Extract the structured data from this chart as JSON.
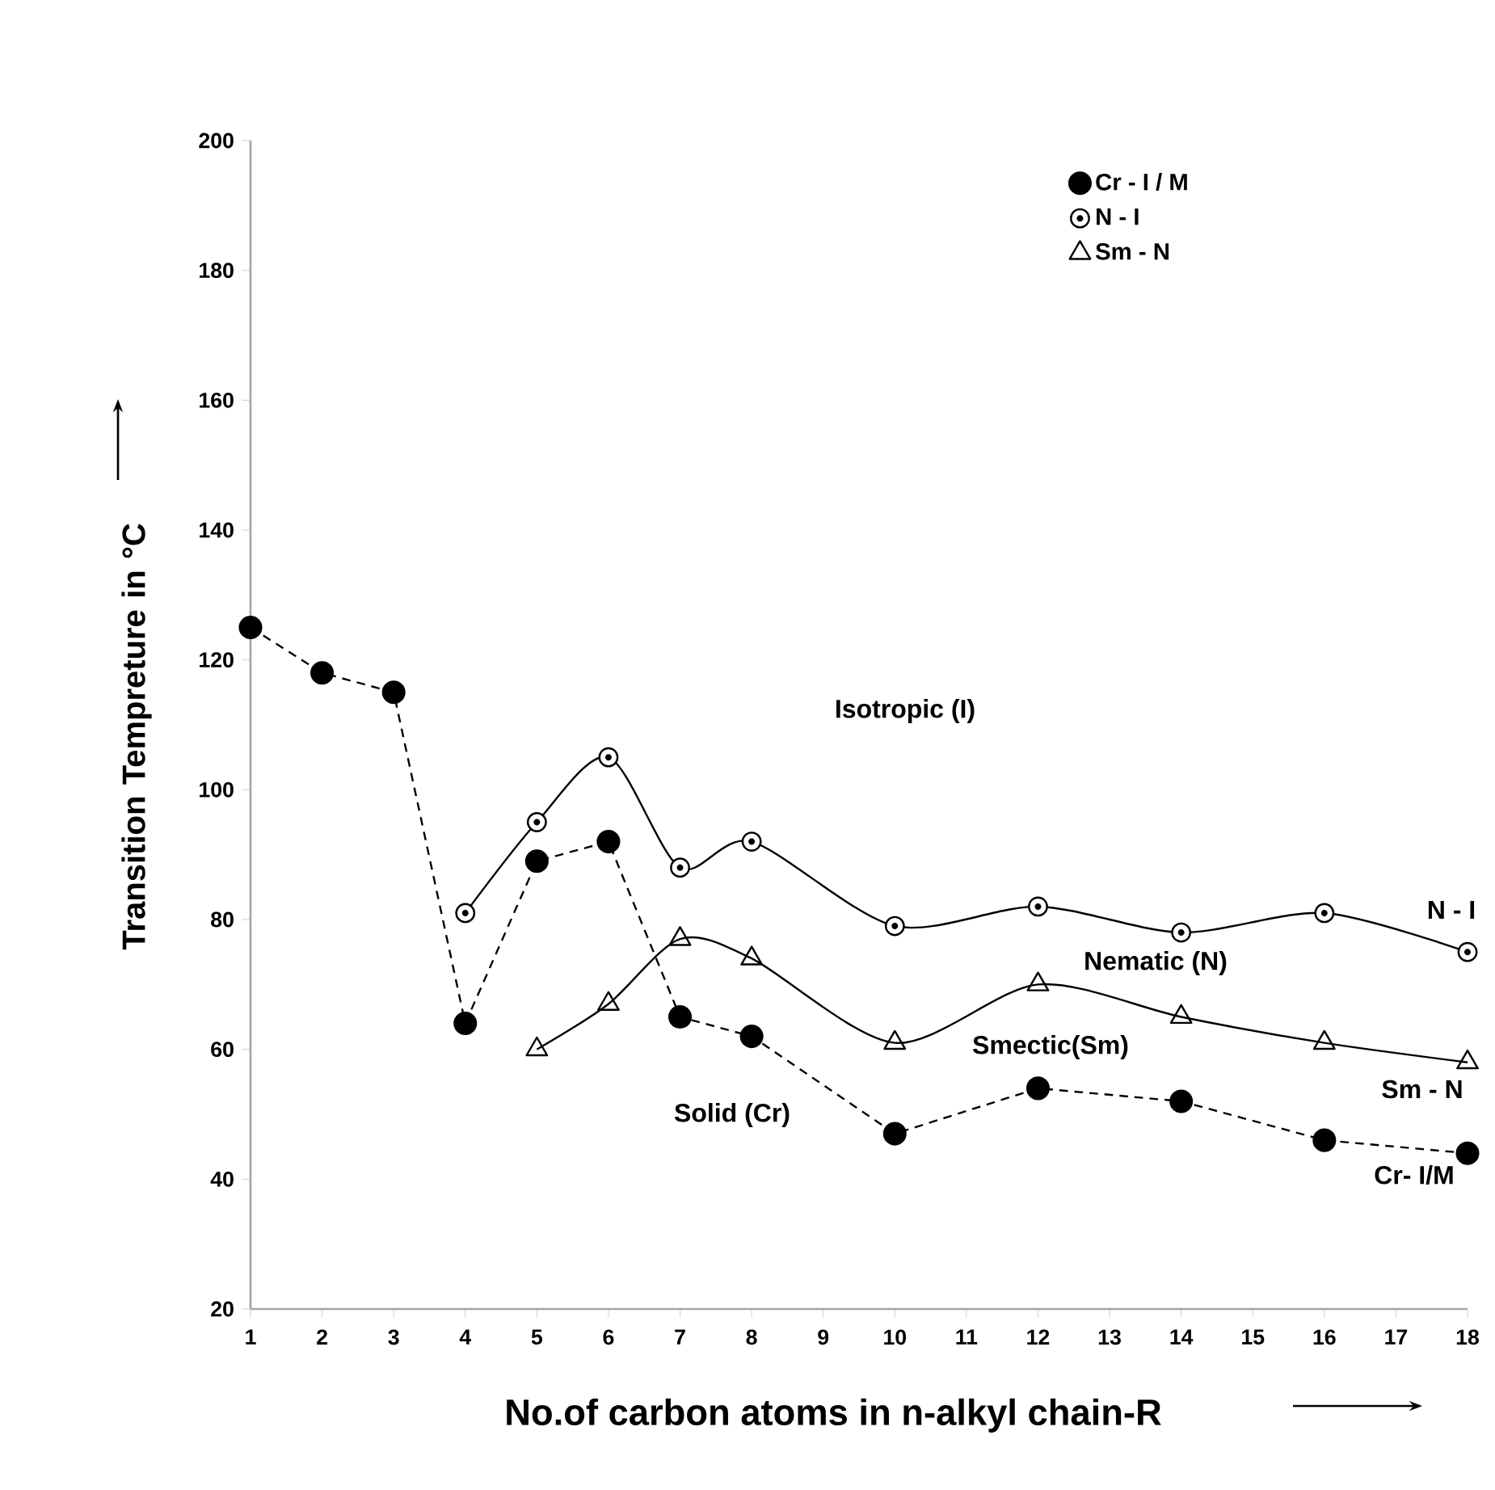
{
  "chart_data": {
    "type": "line",
    "xlabel": "No.of carbon atoms in n-alkyl chain-R",
    "ylabel": "Transition Tempreture in °C",
    "xlim": [
      1,
      18
    ],
    "xticks": [
      1,
      2,
      3,
      4,
      5,
      6,
      7,
      8,
      9,
      10,
      11,
      12,
      13,
      14,
      15,
      16,
      17,
      18
    ],
    "ylim": [
      20,
      200
    ],
    "yticks": [
      20,
      40,
      60,
      80,
      100,
      120,
      140,
      160,
      180,
      200
    ],
    "grid": false,
    "legend": "top right",
    "series": [
      {
        "name": "Cr - I / M",
        "color": "#000000",
        "marker": "circle",
        "line_style": "dashed",
        "x": [
          1,
          2,
          3,
          4,
          5,
          6,
          7,
          8,
          10,
          12,
          14,
          16,
          18
        ],
        "values": [
          125,
          118,
          115,
          64,
          89,
          92,
          65,
          62,
          47,
          54,
          52,
          46,
          44
        ]
      },
      {
        "name": "N - I",
        "color": "#000000",
        "marker": "circle",
        "line_style": "solid",
        "x": [
          4,
          5,
          6,
          7,
          8,
          10,
          12,
          14,
          16,
          18
        ],
        "values": [
          81,
          95,
          105,
          88,
          92,
          79,
          82,
          78,
          81,
          75
        ]
      },
      {
        "name": "Sm - N",
        "color": "#000000",
        "marker": "triangle",
        "line_style": "solid",
        "x": [
          5,
          6,
          7,
          8,
          10,
          12,
          14,
          16,
          18
        ],
        "values": [
          60,
          67,
          77,
          74,
          61,
          70,
          65,
          61,
          58
        ]
      }
    ],
    "annotations": [
      "Isotropic (I)",
      "Nematic (N)",
      "Smectic(Sm)",
      "Solid (Cr)",
      "N - I",
      "Sm - N",
      "Cr- I/M"
    ]
  }
}
